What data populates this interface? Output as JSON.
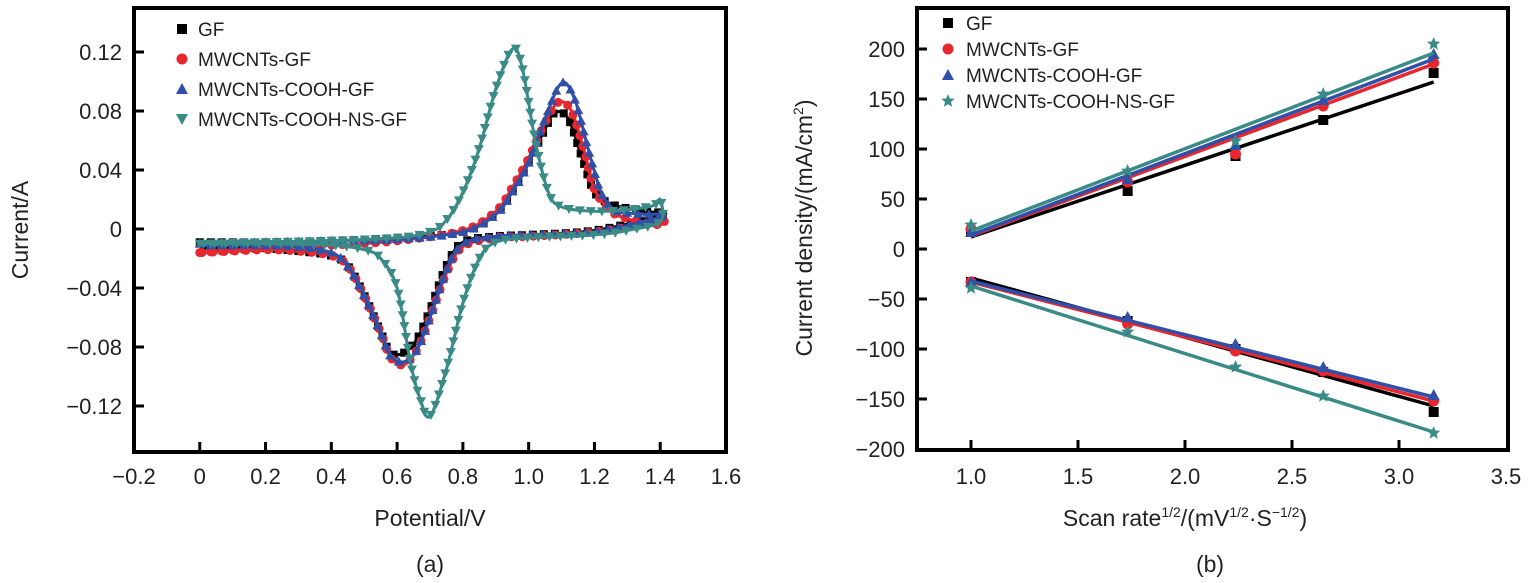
{
  "chart_data": [
    {
      "type": "line",
      "panel": "(a)",
      "title": "",
      "xlabel": "Potential/V",
      "ylabel": "Current/A",
      "xlim": [
        -0.2,
        1.6
      ],
      "ylim": [
        -0.15,
        0.15
      ],
      "xticks": [
        -0.2,
        0,
        0.2,
        0.4,
        0.6,
        0.8,
        1.0,
        1.2,
        1.4,
        1.6
      ],
      "xtick_labels": [
        "−0.2",
        "0",
        "0.2",
        "0.4",
        "0.6",
        "0.8",
        "1.0",
        "1.2",
        "1.4",
        "1.6"
      ],
      "yticks": [
        0.12,
        0.08,
        0.04,
        0,
        -0.04,
        -0.08,
        -0.12
      ],
      "ytick_labels": [
        "0.12",
        "0.08",
        "0.04",
        "0",
        "−0.04",
        "−0.08",
        "−0.12"
      ],
      "grid": false,
      "legend_position": "top-left",
      "series": [
        {
          "name": "GF",
          "color": "#000000",
          "marker": "square",
          "anodic": {
            "x": [
              0,
              0.2,
              0.4,
              0.6,
              0.8,
              0.9,
              0.95,
              1.0,
              1.05,
              1.08,
              1.12,
              1.16,
              1.2,
              1.25,
              1.3,
              1.35,
              1.4
            ],
            "y": [
              -0.009,
              -0.009,
              -0.008,
              -0.006,
              -0.002,
              0.01,
              0.025,
              0.045,
              0.068,
              0.079,
              0.075,
              0.05,
              0.025,
              0.017,
              0.014,
              0.012,
              0.011
            ]
          },
          "cathodic": {
            "x": [
              1.4,
              1.2,
              1.0,
              0.9,
              0.8,
              0.75,
              0.7,
              0.66,
              0.62,
              0.58,
              0.55,
              0.5,
              0.45,
              0.4,
              0.3,
              0.2,
              0.1,
              0
            ],
            "y": [
              0.009,
              -0.001,
              -0.004,
              -0.005,
              -0.009,
              -0.025,
              -0.055,
              -0.075,
              -0.084,
              -0.084,
              -0.07,
              -0.045,
              -0.025,
              -0.018,
              -0.015,
              -0.013,
              -0.013,
              -0.013
            ]
          }
        },
        {
          "name": "MWCNTs-GF",
          "color": "#e8262d",
          "marker": "circle",
          "anodic": {
            "x": [
              0,
              0.2,
              0.4,
              0.6,
              0.8,
              0.9,
              0.95,
              1.0,
              1.05,
              1.09,
              1.13,
              1.17,
              1.2,
              1.25,
              1.3,
              1.35,
              1.4
            ],
            "y": [
              -0.016,
              -0.013,
              -0.011,
              -0.008,
              -0.001,
              0.012,
              0.028,
              0.048,
              0.072,
              0.086,
              0.08,
              0.052,
              0.027,
              0.012,
              0.007,
              0.004,
              0.003
            ]
          },
          "cathodic": {
            "x": [
              1.4,
              1.2,
              1.0,
              0.9,
              0.8,
              0.75,
              0.7,
              0.66,
              0.62,
              0.58,
              0.55,
              0.5,
              0.45,
              0.4,
              0.3,
              0.2,
              0.1,
              0
            ],
            "y": [
              0.005,
              -0.002,
              -0.005,
              -0.006,
              -0.012,
              -0.03,
              -0.06,
              -0.082,
              -0.092,
              -0.087,
              -0.07,
              -0.045,
              -0.025,
              -0.018,
              -0.015,
              -0.014,
              -0.015,
              -0.016
            ]
          }
        },
        {
          "name": "MWCNTs-COOH-GF",
          "color": "#2f4fa8",
          "marker": "triangle-up",
          "anodic": {
            "x": [
              0,
              0.2,
              0.4,
              0.6,
              0.8,
              0.9,
              0.95,
              1.0,
              1.05,
              1.1,
              1.14,
              1.18,
              1.22,
              1.26,
              1.3,
              1.35,
              1.4
            ],
            "y": [
              -0.01,
              -0.009,
              -0.008,
              -0.007,
              -0.002,
              0.01,
              0.025,
              0.045,
              0.075,
              0.099,
              0.088,
              0.055,
              0.025,
              0.013,
              0.011,
              0.01,
              0.01
            ]
          },
          "cathodic": {
            "x": [
              1.4,
              1.2,
              1.0,
              0.9,
              0.8,
              0.75,
              0.7,
              0.66,
              0.62,
              0.58,
              0.55,
              0.5,
              0.45,
              0.4,
              0.3,
              0.2,
              0.1,
              0
            ],
            "y": [
              0.008,
              -0.002,
              -0.004,
              -0.005,
              -0.01,
              -0.028,
              -0.06,
              -0.082,
              -0.09,
              -0.086,
              -0.07,
              -0.045,
              -0.025,
              -0.016,
              -0.012,
              -0.011,
              -0.011,
              -0.011
            ]
          }
        },
        {
          "name": "MWCNTs-COOH-NS-GF",
          "color": "#3a8b87",
          "marker": "triangle-down",
          "anodic": {
            "x": [
              0,
              0.2,
              0.4,
              0.6,
              0.7,
              0.75,
              0.8,
              0.85,
              0.9,
              0.95,
              0.98,
              1.02,
              1.06,
              1.1,
              1.2,
              1.3,
              1.38,
              1.4
            ],
            "y": [
              -0.01,
              -0.009,
              -0.008,
              -0.006,
              -0.002,
              0.006,
              0.025,
              0.055,
              0.095,
              0.122,
              0.11,
              0.06,
              0.025,
              0.015,
              0.012,
              0.013,
              0.016,
              0.02
            ]
          },
          "cathodic": {
            "x": [
              1.4,
              1.3,
              1.2,
              1.0,
              0.9,
              0.85,
              0.8,
              0.75,
              0.7,
              0.67,
              0.64,
              0.6,
              0.55,
              0.5,
              0.4,
              0.2,
              0
            ],
            "y": [
              0.005,
              -0.001,
              -0.004,
              -0.006,
              -0.009,
              -0.02,
              -0.05,
              -0.095,
              -0.127,
              -0.115,
              -0.09,
              -0.04,
              -0.02,
              -0.014,
              -0.011,
              -0.01,
              -0.01
            ]
          }
        }
      ]
    },
    {
      "type": "scatter",
      "panel": "(b)",
      "title": "",
      "xlabel": "Scan rate",
      "xlabel_sup1": "1/2",
      "xlabel_mid": "/(mV",
      "xlabel_sup2": "1/2",
      "xlabel_mid2": "·S",
      "xlabel_sup3": "−1/2",
      "xlabel_end": ")",
      "ylabel": "Current density/(mA/cm",
      "ylabel_sup": "2",
      "ylabel_end": ")",
      "xlim": [
        0.75,
        3.5
      ],
      "ylim": [
        -200,
        240
      ],
      "xticks": [
        1.0,
        1.5,
        2.0,
        2.5,
        3.0,
        3.5
      ],
      "xtick_labels": [
        "1.0",
        "1.5",
        "2.0",
        "2.5",
        "3.0",
        "3.5"
      ],
      "yticks": [
        200,
        150,
        100,
        50,
        0,
        -50,
        -100,
        -150,
        -200
      ],
      "ytick_labels": [
        "200",
        "150",
        "100",
        "50",
        "0",
        "−50",
        "−100",
        "−150",
        "−200"
      ],
      "grid": false,
      "legend_position": "top-left",
      "x": [
        1.0,
        1.732,
        2.236,
        2.646,
        3.162
      ],
      "series": [
        {
          "name": "GF",
          "color": "#000000",
          "marker": "square",
          "anodic": [
            17,
            58,
            93,
            129,
            176
          ],
          "cathodic": [
            -33,
            -72,
            -100,
            -123,
            -163
          ],
          "fit_anodic": [
            12,
            167
          ],
          "fit_cathodic": [
            -29,
            -157
          ]
        },
        {
          "name": "MWCNTs-GF",
          "color": "#e8262d",
          "marker": "circle",
          "anodic": [
            20,
            67,
            95,
            143,
            186
          ],
          "cathodic": [
            -33,
            -75,
            -102,
            -122,
            -152
          ],
          "fit_anodic": [
            13,
            185
          ],
          "fit_cathodic": [
            -33,
            -152
          ]
        },
        {
          "name": "MWCNTs-COOH-GF",
          "color": "#2f4fa8",
          "marker": "triangle-up",
          "anodic": [
            17,
            70,
            104,
            149,
            195
          ],
          "cathodic": [
            -33,
            -68,
            -95,
            -118,
            -146
          ],
          "fit_anodic": [
            14,
            190
          ],
          "fit_cathodic": [
            -32,
            -148
          ]
        },
        {
          "name": "MWCNTs-COOH-NS-GF",
          "color": "#3a8b87",
          "marker": "star",
          "anodic": [
            24,
            78,
            108,
            155,
            205
          ],
          "cathodic": [
            -39,
            -83,
            -118,
            -147,
            -184
          ],
          "fit_anodic": [
            18,
            196
          ],
          "fit_cathodic": [
            -37,
            -183
          ]
        }
      ]
    }
  ]
}
